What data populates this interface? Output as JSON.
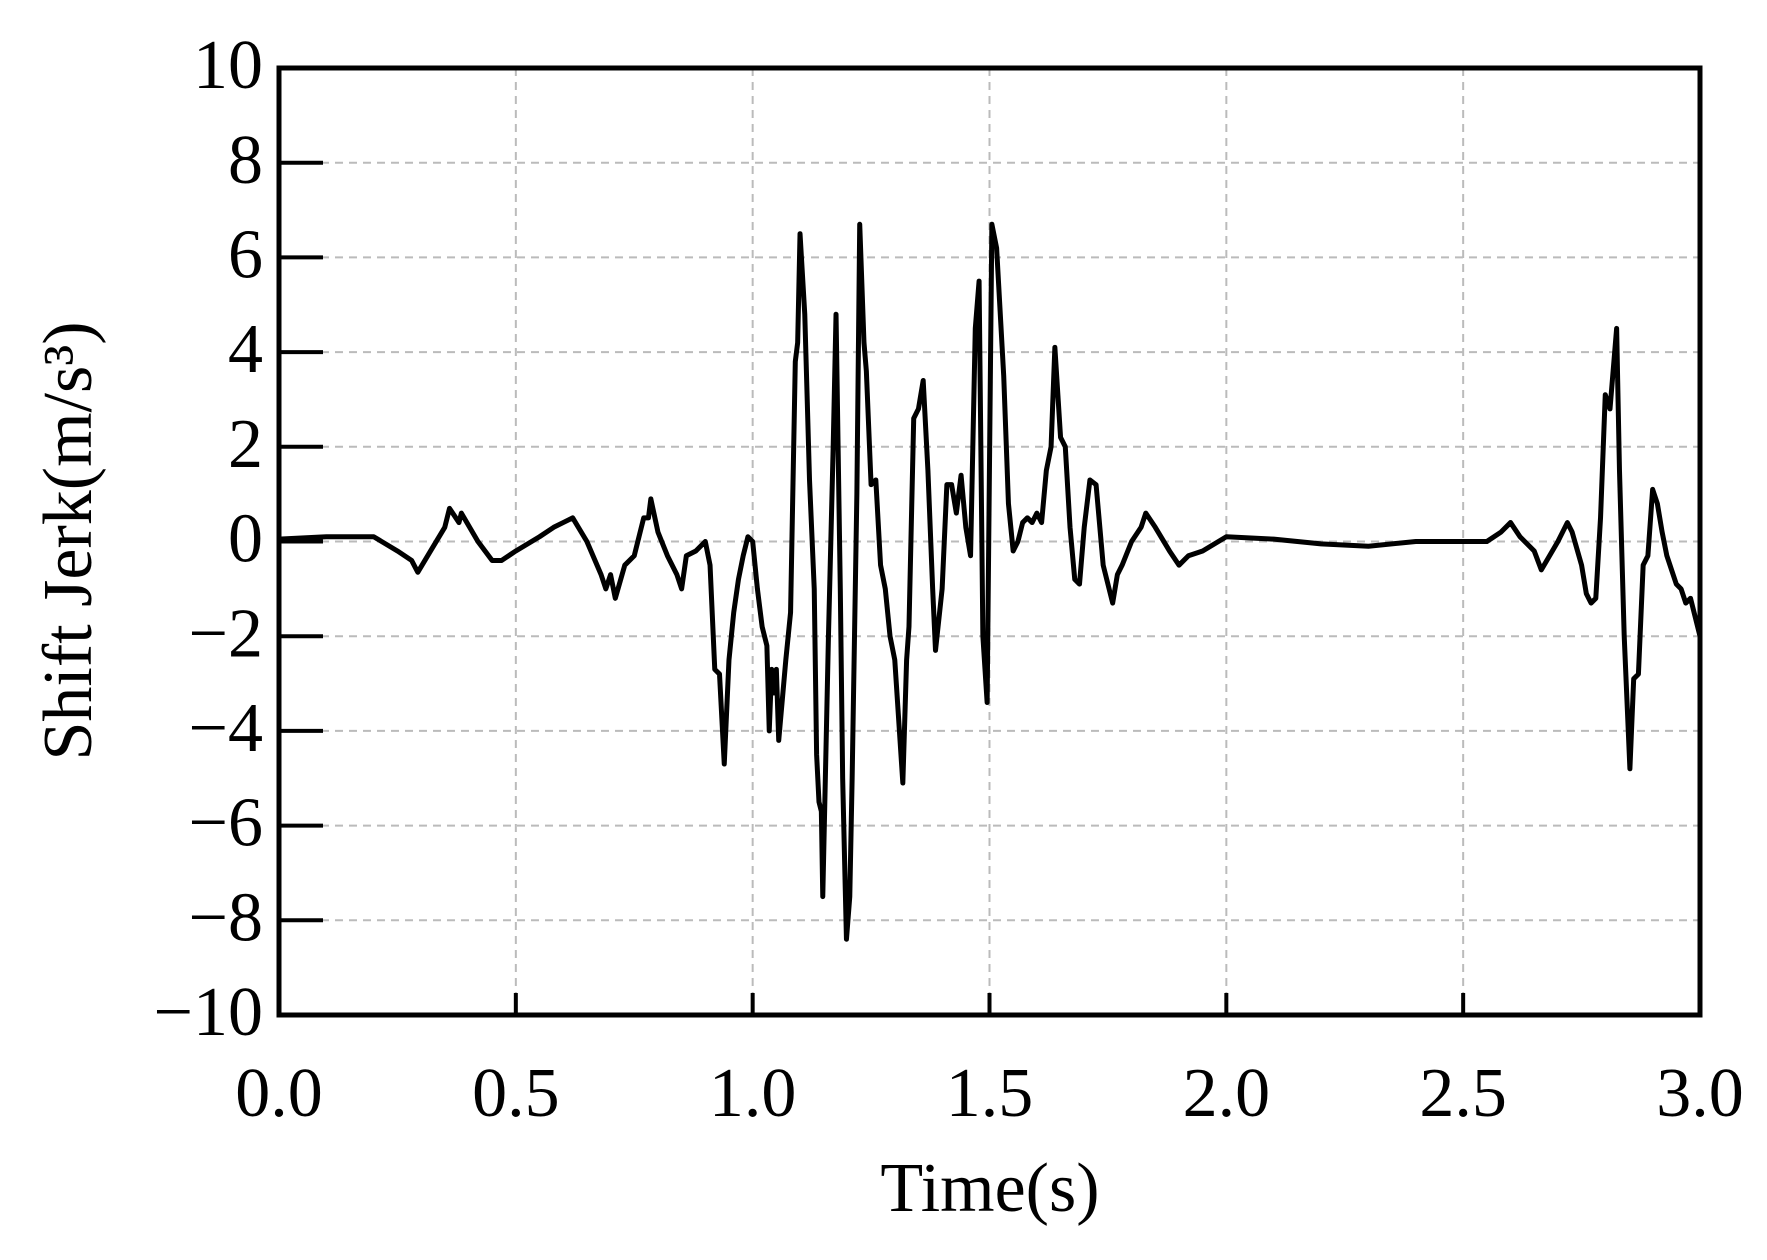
{
  "chart_data": {
    "type": "line",
    "xlabel": "Time(s)",
    "ylabel": "Shift Jerk(m/s³)",
    "x": [
      0,
      0.1,
      0.2,
      0.25,
      0.28,
      0.293,
      0.32,
      0.35,
      0.36,
      0.38,
      0.385,
      0.42,
      0.45,
      0.47,
      0.5,
      0.55,
      0.58,
      0.6,
      0.62,
      0.65,
      0.68,
      0.69,
      0.7,
      0.71,
      0.73,
      0.75,
      0.77,
      0.78,
      0.785,
      0.8,
      0.82,
      0.84,
      0.85,
      0.86,
      0.88,
      0.9,
      0.91,
      0.92,
      0.93,
      0.94,
      0.95,
      0.96,
      0.97,
      0.98,
      0.99,
      1.0,
      1.01,
      1.02,
      1.03,
      1.035,
      1.04,
      1.045,
      1.05,
      1.055,
      1.07,
      1.08,
      1.09,
      1.095,
      1.1,
      1.11,
      1.12,
      1.13,
      1.135,
      1.14,
      1.145,
      1.148,
      1.16,
      1.17,
      1.176,
      1.185,
      1.19,
      1.198,
      1.205,
      1.21,
      1.22,
      1.226,
      1.235,
      1.24,
      1.25,
      1.26,
      1.27,
      1.28,
      1.29,
      1.3,
      1.317,
      1.325,
      1.33,
      1.34,
      1.35,
      1.36,
      1.37,
      1.38,
      1.386,
      1.4,
      1.41,
      1.42,
      1.43,
      1.44,
      1.45,
      1.46,
      1.47,
      1.478,
      1.486,
      1.495,
      1.505,
      1.515,
      1.53,
      1.54,
      1.55,
      1.56,
      1.57,
      1.58,
      1.59,
      1.6,
      1.61,
      1.62,
      1.63,
      1.638,
      1.65,
      1.66,
      1.67,
      1.68,
      1.69,
      1.7,
      1.712,
      1.725,
      1.74,
      1.76,
      1.77,
      1.78,
      1.8,
      1.82,
      1.83,
      1.85,
      1.88,
      1.9,
      1.92,
      1.95,
      2.0,
      2.1,
      2.2,
      2.3,
      2.4,
      2.5,
      2.55,
      2.58,
      2.6,
      2.62,
      2.65,
      2.665,
      2.7,
      2.72,
      2.73,
      2.75,
      2.76,
      2.77,
      2.78,
      2.79,
      2.8,
      2.81,
      2.824,
      2.83,
      2.84,
      2.852,
      2.86,
      2.87,
      2.88,
      2.89,
      2.9,
      2.91,
      2.92,
      2.93,
      2.94,
      2.95,
      2.96,
      2.97,
      2.98,
      3.0
    ],
    "values": [
      0.05,
      0.1,
      0.1,
      -0.2,
      -0.4,
      -0.65,
      -0.2,
      0.3,
      0.7,
      0.4,
      0.6,
      0.0,
      -0.4,
      -0.4,
      -0.2,
      0.1,
      0.3,
      0.4,
      0.5,
      0.0,
      -0.7,
      -1.0,
      -0.7,
      -1.2,
      -0.5,
      -0.3,
      0.5,
      0.5,
      0.9,
      0.2,
      -0.3,
      -0.7,
      -1.0,
      -0.3,
      -0.2,
      0.0,
      -0.5,
      -2.7,
      -2.8,
      -4.7,
      -2.5,
      -1.5,
      -0.8,
      -0.3,
      0.1,
      0.0,
      -1.0,
      -1.8,
      -2.2,
      -4.0,
      -2.7,
      -3.2,
      -2.7,
      -4.2,
      -2.5,
      -1.5,
      3.8,
      4.2,
      6.5,
      4.8,
      1.3,
      -1.0,
      -4.5,
      -5.5,
      -5.7,
      -7.5,
      -2.0,
      2.0,
      4.8,
      -1.0,
      -5.0,
      -8.4,
      -7.5,
      -5.0,
      1.0,
      6.7,
      4.2,
      3.6,
      1.2,
      1.3,
      -0.5,
      -1.0,
      -2.0,
      -2.5,
      -5.1,
      -2.5,
      -1.8,
      2.6,
      2.8,
      3.4,
      1.5,
      -1.0,
      -2.3,
      -1.0,
      1.2,
      1.2,
      0.6,
      1.4,
      0.3,
      -0.3,
      4.5,
      5.5,
      -2.0,
      -3.4,
      6.7,
      6.2,
      3.5,
      0.8,
      -0.2,
      0.0,
      0.4,
      0.5,
      0.4,
      0.6,
      0.4,
      1.5,
      2.0,
      4.1,
      2.2,
      2.0,
      0.3,
      -0.8,
      -0.9,
      0.3,
      1.3,
      1.2,
      -0.5,
      -1.3,
      -0.7,
      -0.5,
      0.0,
      0.3,
      0.6,
      0.3,
      -0.2,
      -0.5,
      -0.3,
      -0.2,
      0.1,
      0.05,
      -0.05,
      -0.1,
      0.0,
      0.0,
      0.0,
      0.2,
      0.4,
      0.1,
      -0.2,
      -0.6,
      0.0,
      0.4,
      0.2,
      -0.5,
      -1.1,
      -1.3,
      -1.2,
      0.5,
      3.1,
      2.8,
      4.5,
      1.5,
      -2.0,
      -4.8,
      -2.9,
      -2.8,
      -0.5,
      -0.3,
      1.1,
      0.8,
      0.2,
      -0.3,
      -0.6,
      -0.9,
      -1.0,
      -1.3,
      -1.2,
      -2.0
    ],
    "color": "#000000",
    "xlim": [
      0,
      3
    ],
    "ylim": [
      -10,
      10
    ],
    "xticks": [
      {
        "value": 0,
        "label": "0.0"
      },
      0.5,
      {
        "value": 1,
        "label": "1.0"
      },
      1.5,
      {
        "value": 2,
        "label": "2.0"
      },
      2.5,
      {
        "value": 3,
        "label": "3.0"
      }
    ],
    "yticks": [
      {
        "value": -10,
        "label": "−10"
      },
      {
        "value": -8,
        "label": "−8"
      },
      {
        "value": -6,
        "label": "−6"
      },
      {
        "value": -4,
        "label": "−4"
      },
      {
        "value": -2,
        "label": "−2"
      },
      0,
      2,
      4,
      6,
      8,
      10
    ],
    "grid": true
  }
}
